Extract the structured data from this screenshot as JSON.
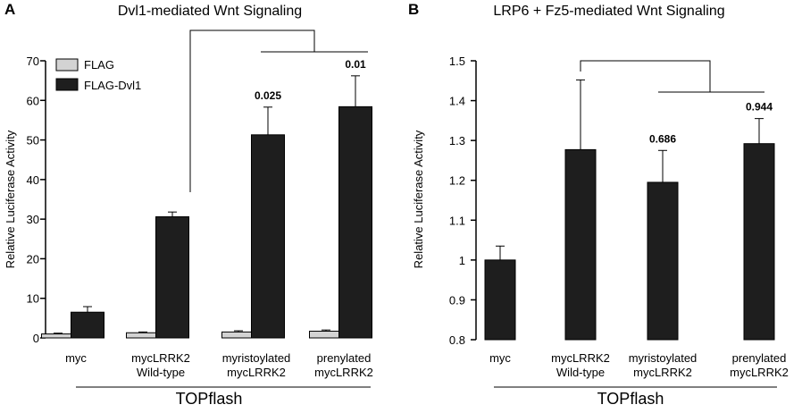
{
  "chart_data": [
    {
      "panel_label": "A",
      "type": "bar",
      "title": "Dvl1-mediated Wnt Signaling",
      "ylabel": "Relative Luciferase Activity",
      "ylim": [
        0,
        70
      ],
      "yticks": [
        "0",
        "10",
        "20",
        "30",
        "40",
        "50",
        "60",
        "70"
      ],
      "categories": [
        [
          "myc"
        ],
        [
          "mycLRRK2",
          "Wild-type"
        ],
        [
          "myristoylated",
          "mycLRRK2"
        ],
        [
          "prenylated",
          "mycLRRK2"
        ]
      ],
      "xlabel": "TOPflash",
      "legend_position": "top-left",
      "series": [
        {
          "name": "FLAG",
          "color": "#d3d3d3",
          "values": [
            1.0,
            1.3,
            1.5,
            1.7
          ],
          "errors": [
            0.2,
            0.2,
            0.3,
            0.3
          ]
        },
        {
          "name": "FLAG-Dvl1",
          "color": "#1e1e1e",
          "values": [
            6.5,
            30.6,
            51.3,
            58.4
          ],
          "errors": [
            1.4,
            1.2,
            7.0,
            7.8
          ]
        }
      ],
      "p_values": [
        "",
        "",
        "0.025",
        "0.01"
      ],
      "bracket": {
        "from_category": 1,
        "to_categories": [
          2,
          3
        ]
      }
    },
    {
      "panel_label": "B",
      "type": "bar",
      "title": "LRP6 + Fz5-mediated Wnt Signaling",
      "ylabel": "Relative Luciferase Activity",
      "ylim": [
        0.8,
        1.5
      ],
      "yticks": [
        "0.8",
        "0.9",
        "1",
        "1.1",
        "1.2",
        "1.3",
        "1.4",
        "1.5"
      ],
      "categories": [
        [
          "myc"
        ],
        [
          "mycLRRK2",
          "Wild-type"
        ],
        [
          "myristoylated",
          "mycLRRK2"
        ],
        [
          "prenylated",
          "mycLRRK2"
        ]
      ],
      "xlabel": "TOPflash",
      "series": [
        {
          "name": "",
          "color": "#1e1e1e",
          "values": [
            1.0,
            1.277,
            1.195,
            1.292
          ],
          "errors": [
            0.035,
            0.175,
            0.08,
            0.063
          ]
        }
      ],
      "p_values": [
        "",
        "",
        "0.686",
        "0.944"
      ],
      "bracket": {
        "from_category": 1,
        "to_categories": [
          2,
          3
        ]
      }
    }
  ]
}
